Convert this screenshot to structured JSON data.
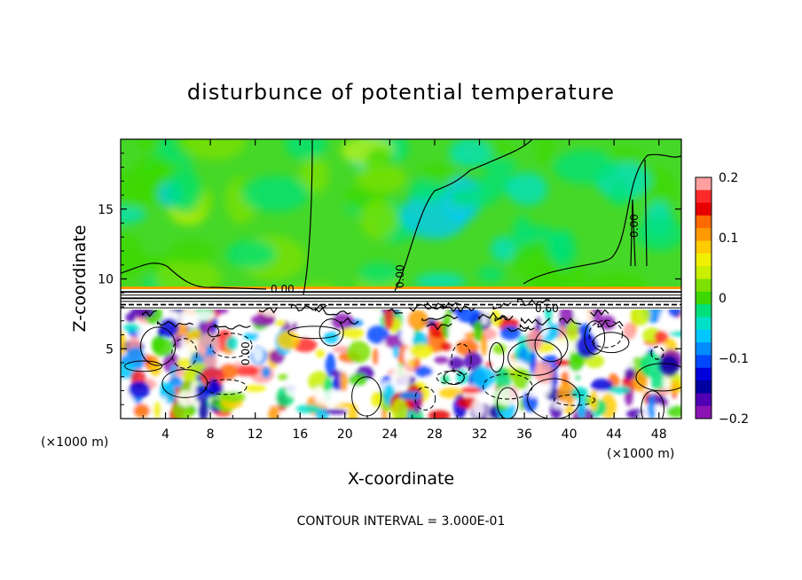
{
  "chart_data": {
    "type": "heatmap",
    "title": "disturbunce of potential temperature",
    "xlabel": "X-coordinate",
    "ylabel": "Z-coordinate",
    "x_unit": "(×1000 m)",
    "y_unit": "(×1000 m)",
    "xlim": [
      0,
      50
    ],
    "ylim": [
      0,
      20
    ],
    "x_ticks": [
      4,
      8,
      12,
      16,
      20,
      24,
      28,
      32,
      36,
      40,
      44,
      48
    ],
    "y_ticks": [
      5,
      10,
      15
    ],
    "colorbar": {
      "range": [
        -0.2,
        0.2
      ],
      "ticks": [
        0.2,
        0.1,
        0,
        -0.1,
        -0.2
      ],
      "tick_labels": [
        "0.2",
        "0.1",
        "0",
        "−0.1",
        "−0.2"
      ],
      "colors": [
        "#ff9f9f",
        "#ff2a2a",
        "#e60000",
        "#ff6a00",
        "#ff9900",
        "#ffcc00",
        "#f0f000",
        "#c8f000",
        "#7ee000",
        "#3ed800",
        "#00e07a",
        "#00e0c8",
        "#00c8ff",
        "#008cff",
        "#0048ff",
        "#0000dc",
        "#0000a0",
        "#5000b4",
        "#8c14b4"
      ]
    },
    "contour_interval": "CONTOUR INTERVAL = 3.000E-01",
    "contour_labels": [
      "0.00",
      "0.60",
      "0.00",
      "0.00",
      "0.00"
    ],
    "regions": {
      "upper_value": 0.0,
      "band_bottom_z": 7.8,
      "band_top_z": 9.2
    }
  }
}
